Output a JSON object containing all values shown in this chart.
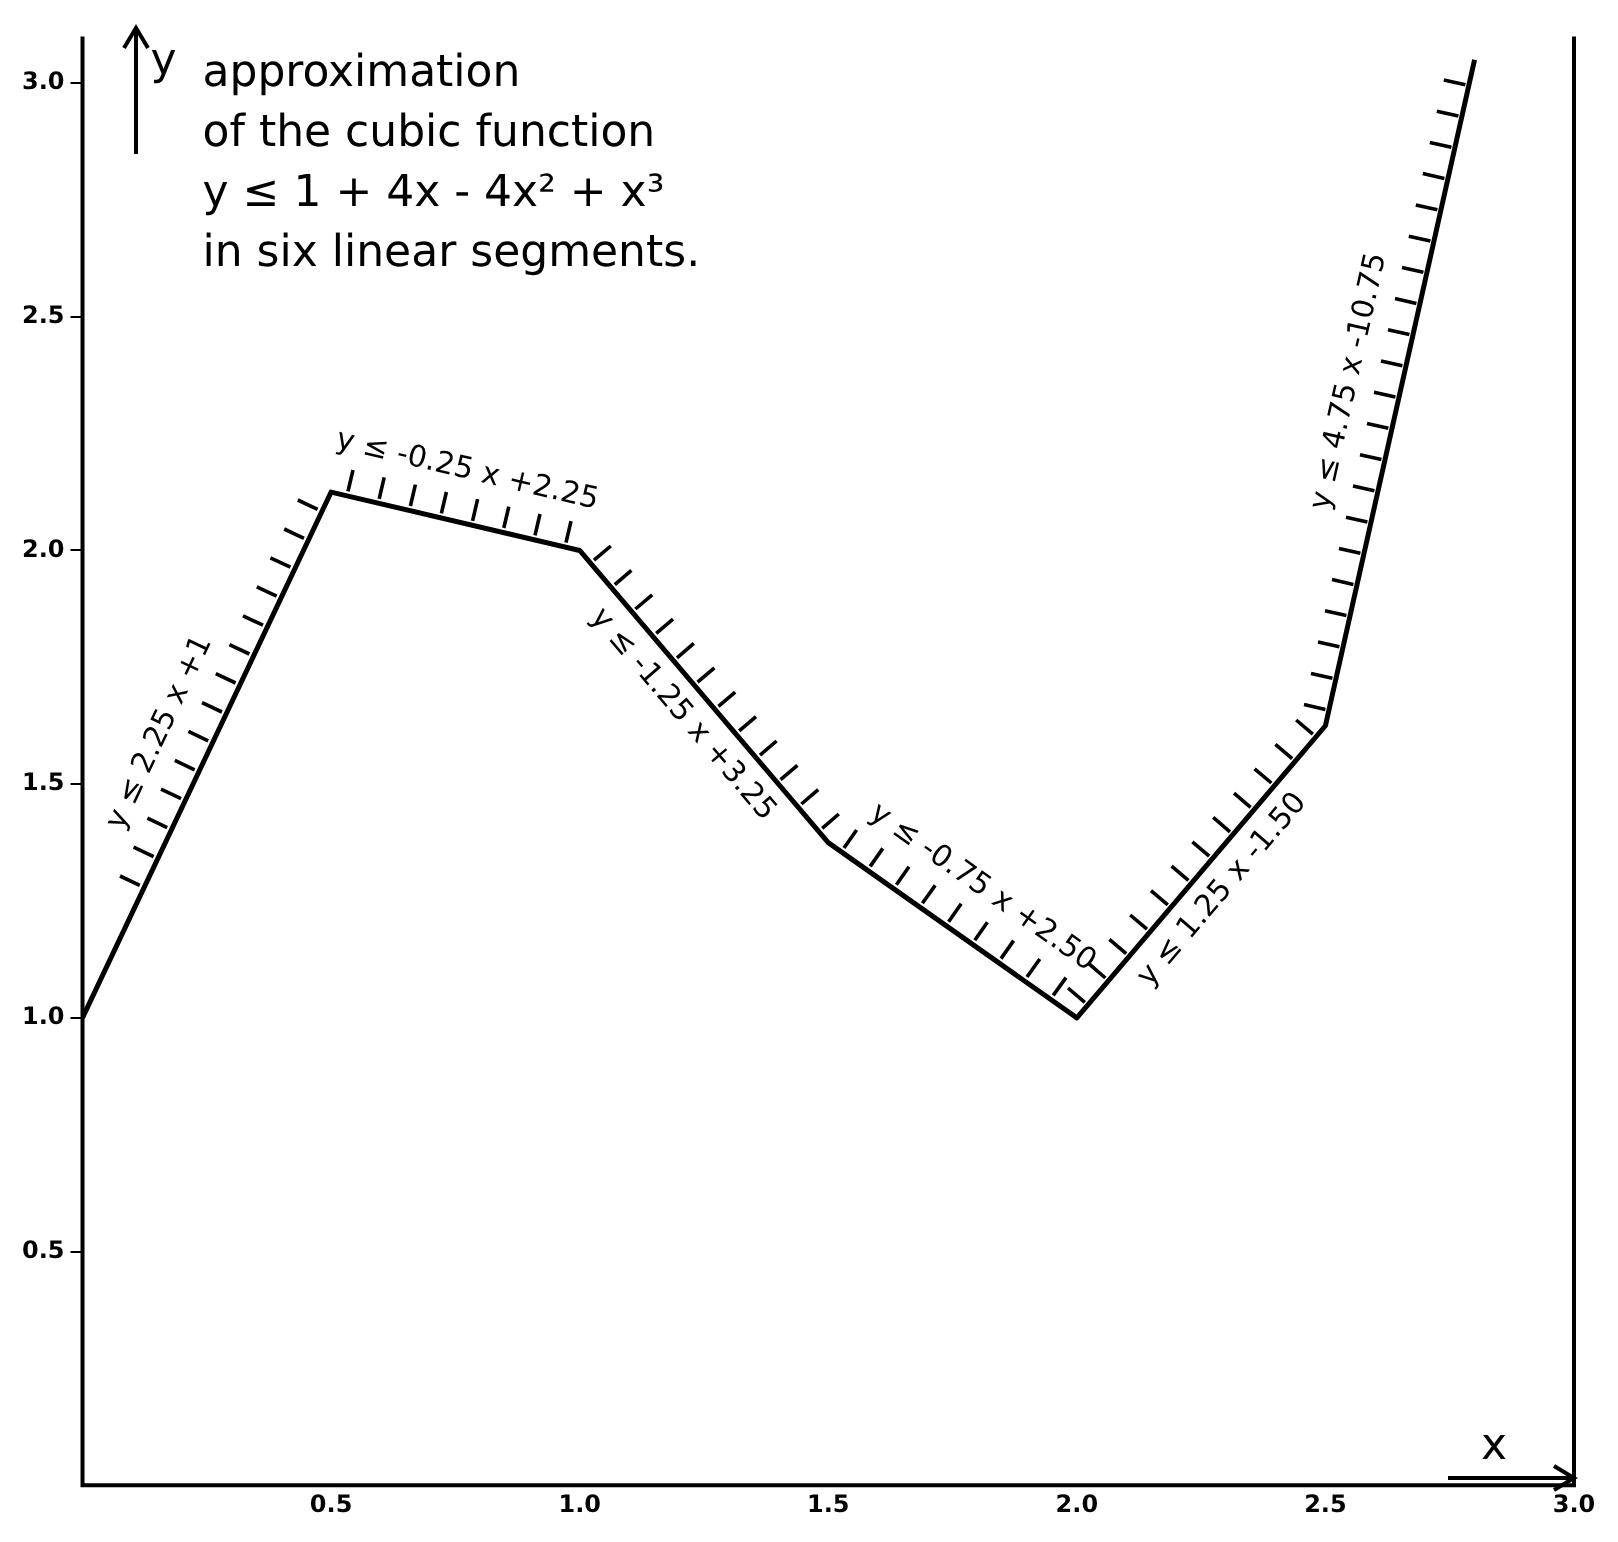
{
  "chart_data": {
    "type": "line",
    "title": "approximation\nof the cubic function\ny ≤ 1 + 4x - 4x² + x³\nin six linear segments.",
    "xlabel": "x",
    "ylabel": "y",
    "series": [
      {
        "color": "#000000",
        "x": [
          0,
          0.5,
          1,
          1.5,
          2,
          2.5,
          2.8
        ],
        "values": [
          1,
          2.125,
          2,
          1.375,
          1,
          1.625,
          3.05
        ]
      }
    ],
    "xlim": [
      0,
      3
    ],
    "xticks": [
      0.5,
      {
        "value": 1,
        "label": "1.0"
      },
      1.5,
      {
        "value": 2,
        "label": "2.0"
      },
      2.5,
      {
        "value": 3,
        "label": "3.0"
      }
    ],
    "ylim": [
      0,
      3.1
    ],
    "yticks": [
      0.5,
      {
        "value": 1,
        "label": "1.0"
      },
      1.5,
      {
        "value": 2,
        "label": "2.0"
      },
      2.5,
      {
        "value": 3,
        "label": "3.0"
      }
    ],
    "grid": false,
    "legend": false,
    "marker": "none",
    "line_style": "solid",
    "annotations": [
      "y ≤ 2.25 x +1",
      "y ≤ -0.25 x +2.25",
      "y ≤ -1.25 x +3.25",
      "y ≤ -0.75 x +2.50",
      "y ≤ 1.25 x -1.50",
      "y ≤ 4.75 x -10.75"
    ]
  }
}
